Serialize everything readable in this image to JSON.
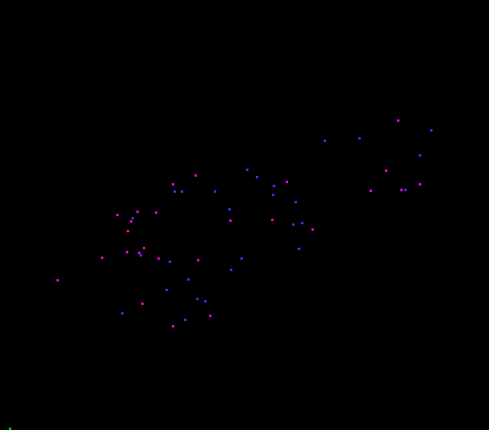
{
  "colors": {
    "background": "#000000",
    "magenta": "#ff00cc",
    "blue": "#3333ff",
    "green": "#00cc00"
  }
}
